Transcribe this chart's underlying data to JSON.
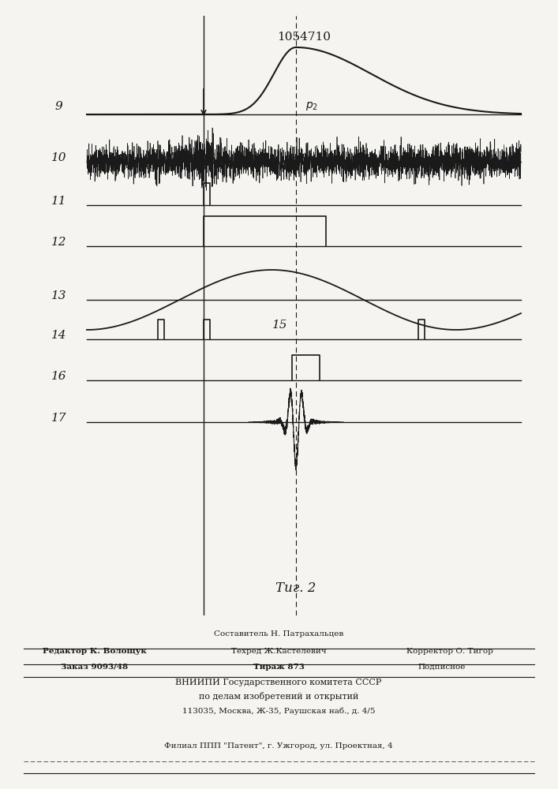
{
  "patent_number": "1054710",
  "fig_label": "Τиг. 2",
  "background_color": "#f5f4f0",
  "line_color": "#1a1a1a",
  "footer_lines": [
    "Составитель Н. Патрахальцев",
    "Редактор К. Волощук",
    "Техред Ж.Кастелевич",
    "Корректор О. Тигор",
    "Заказ 9093/48",
    "Тираж 873",
    "Подписное",
    "ВНИИПИ Государственного комитета СССР",
    "по делам изобретений и открытий",
    "113035, Москва, Ж-35, Раушская наб., д. 4/5",
    "Филиал ППП \"Патент\", г. Ужгород, ул. Проектная, 4"
  ]
}
